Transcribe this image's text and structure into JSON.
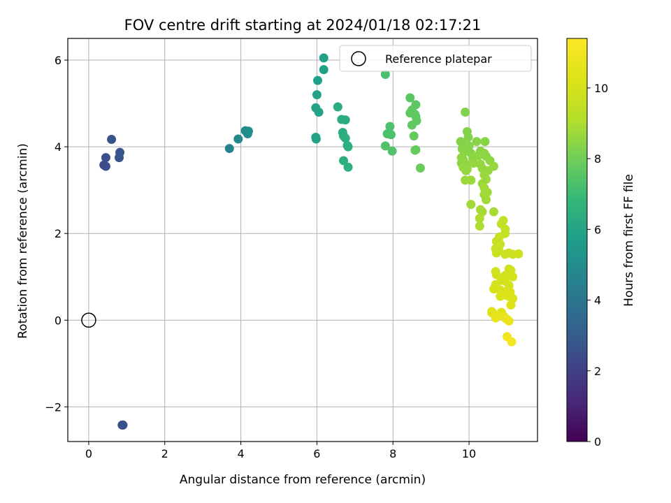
{
  "chart_data": {
    "type": "scatter",
    "title": "FOV centre drift starting at 2024/01/18 02:17:21",
    "xlabel": "Angular distance from reference (arcmin)",
    "ylabel": "Rotation from reference (arcmin)",
    "xlim": [
      -0.55,
      11.8
    ],
    "ylim": [
      -2.8,
      6.5
    ],
    "xticks": [
      0,
      2,
      4,
      6,
      8,
      10
    ],
    "yticks": [
      -2,
      0,
      2,
      4,
      6
    ],
    "grid": true,
    "legend": {
      "position": "top-right",
      "entries": [
        "Reference platepar"
      ]
    },
    "reference_point": {
      "x": 0,
      "y": 0,
      "label": "Reference platepar"
    },
    "colorbar": {
      "label": "Hours from first FF file",
      "colormap": "viridis",
      "range": [
        0,
        11.4
      ],
      "ticks": [
        0,
        2,
        4,
        6,
        8,
        10
      ]
    },
    "points": [
      {
        "x": 0.88,
        "y": -2.42,
        "c": 2.5
      },
      {
        "x": 0.9,
        "y": -2.42,
        "c": 2.5
      },
      {
        "x": 0.4,
        "y": 3.58,
        "c": 2.4
      },
      {
        "x": 0.45,
        "y": 3.55,
        "c": 2.4
      },
      {
        "x": 0.45,
        "y": 3.75,
        "c": 2.5
      },
      {
        "x": 0.6,
        "y": 4.17,
        "c": 2.6
      },
      {
        "x": 0.8,
        "y": 3.75,
        "c": 2.7
      },
      {
        "x": 0.82,
        "y": 3.87,
        "c": 2.7
      },
      {
        "x": 3.7,
        "y": 3.96,
        "c": 4.6
      },
      {
        "x": 3.93,
        "y": 4.18,
        "c": 4.8
      },
      {
        "x": 4.12,
        "y": 4.37,
        "c": 4.9
      },
      {
        "x": 4.18,
        "y": 4.3,
        "c": 4.9
      },
      {
        "x": 4.2,
        "y": 4.36,
        "c": 5.0
      },
      {
        "x": 6.18,
        "y": 6.05,
        "c": 5.8
      },
      {
        "x": 6.18,
        "y": 5.78,
        "c": 5.8
      },
      {
        "x": 6.02,
        "y": 5.53,
        "c": 5.8
      },
      {
        "x": 6.0,
        "y": 5.2,
        "c": 5.9
      },
      {
        "x": 5.97,
        "y": 4.9,
        "c": 5.9
      },
      {
        "x": 6.05,
        "y": 4.8,
        "c": 5.9
      },
      {
        "x": 5.97,
        "y": 4.22,
        "c": 5.9
      },
      {
        "x": 5.98,
        "y": 4.18,
        "c": 5.9
      },
      {
        "x": 6.55,
        "y": 4.92,
        "c": 6.3
      },
      {
        "x": 6.65,
        "y": 4.63,
        "c": 6.4
      },
      {
        "x": 6.75,
        "y": 4.62,
        "c": 6.4
      },
      {
        "x": 6.68,
        "y": 4.33,
        "c": 6.4
      },
      {
        "x": 6.7,
        "y": 4.25,
        "c": 6.4
      },
      {
        "x": 6.75,
        "y": 4.2,
        "c": 6.5
      },
      {
        "x": 6.8,
        "y": 4.03,
        "c": 6.5
      },
      {
        "x": 6.82,
        "y": 4.0,
        "c": 6.5
      },
      {
        "x": 6.7,
        "y": 3.68,
        "c": 6.5
      },
      {
        "x": 6.82,
        "y": 3.53,
        "c": 6.5
      },
      {
        "x": 7.8,
        "y": 5.67,
        "c": 7.3
      },
      {
        "x": 7.92,
        "y": 4.47,
        "c": 7.3
      },
      {
        "x": 7.85,
        "y": 4.3,
        "c": 7.3
      },
      {
        "x": 7.95,
        "y": 4.28,
        "c": 7.3
      },
      {
        "x": 7.8,
        "y": 4.02,
        "c": 7.4
      },
      {
        "x": 7.98,
        "y": 3.9,
        "c": 7.4
      },
      {
        "x": 8.45,
        "y": 5.13,
        "c": 7.6
      },
      {
        "x": 8.6,
        "y": 4.97,
        "c": 7.6
      },
      {
        "x": 8.5,
        "y": 4.85,
        "c": 7.7
      },
      {
        "x": 8.45,
        "y": 4.78,
        "c": 7.7
      },
      {
        "x": 8.58,
        "y": 4.75,
        "c": 7.7
      },
      {
        "x": 8.6,
        "y": 4.7,
        "c": 7.7
      },
      {
        "x": 8.62,
        "y": 4.6,
        "c": 7.7
      },
      {
        "x": 8.5,
        "y": 4.5,
        "c": 7.7
      },
      {
        "x": 8.55,
        "y": 4.25,
        "c": 7.8
      },
      {
        "x": 8.58,
        "y": 3.92,
        "c": 7.8
      },
      {
        "x": 8.6,
        "y": 3.93,
        "c": 7.8
      },
      {
        "x": 8.72,
        "y": 3.51,
        "c": 7.9
      },
      {
        "x": 9.9,
        "y": 4.8,
        "c": 8.3
      },
      {
        "x": 9.95,
        "y": 4.35,
        "c": 8.3
      },
      {
        "x": 9.98,
        "y": 4.22,
        "c": 8.3
      },
      {
        "x": 9.78,
        "y": 4.12,
        "c": 8.3
      },
      {
        "x": 9.85,
        "y": 4.05,
        "c": 8.3
      },
      {
        "x": 10.0,
        "y": 4.02,
        "c": 8.4
      },
      {
        "x": 10.2,
        "y": 4.12,
        "c": 8.4
      },
      {
        "x": 10.42,
        "y": 4.12,
        "c": 8.4
      },
      {
        "x": 9.82,
        "y": 3.95,
        "c": 8.4
      },
      {
        "x": 9.88,
        "y": 3.88,
        "c": 8.4
      },
      {
        "x": 10.05,
        "y": 3.85,
        "c": 8.4
      },
      {
        "x": 10.3,
        "y": 3.9,
        "c": 8.4
      },
      {
        "x": 10.4,
        "y": 3.85,
        "c": 8.5
      },
      {
        "x": 9.8,
        "y": 3.75,
        "c": 8.5
      },
      {
        "x": 9.85,
        "y": 3.7,
        "c": 8.5
      },
      {
        "x": 10.1,
        "y": 3.72,
        "c": 8.5
      },
      {
        "x": 10.25,
        "y": 3.8,
        "c": 8.5
      },
      {
        "x": 10.45,
        "y": 3.78,
        "c": 8.5
      },
      {
        "x": 10.55,
        "y": 3.68,
        "c": 8.5
      },
      {
        "x": 9.8,
        "y": 3.62,
        "c": 8.5
      },
      {
        "x": 9.9,
        "y": 3.6,
        "c": 8.5
      },
      {
        "x": 10.12,
        "y": 3.62,
        "c": 8.6
      },
      {
        "x": 10.3,
        "y": 3.6,
        "c": 8.6
      },
      {
        "x": 10.65,
        "y": 3.55,
        "c": 8.6
      },
      {
        "x": 9.85,
        "y": 3.52,
        "c": 8.6
      },
      {
        "x": 9.95,
        "y": 3.48,
        "c": 8.6
      },
      {
        "x": 10.35,
        "y": 3.5,
        "c": 8.6
      },
      {
        "x": 10.5,
        "y": 3.45,
        "c": 8.6
      },
      {
        "x": 9.92,
        "y": 3.45,
        "c": 8.6
      },
      {
        "x": 10.4,
        "y": 3.35,
        "c": 8.7
      },
      {
        "x": 10.45,
        "y": 3.25,
        "c": 8.7
      },
      {
        "x": 9.9,
        "y": 3.23,
        "c": 8.7
      },
      {
        "x": 10.05,
        "y": 3.23,
        "c": 8.7
      },
      {
        "x": 10.35,
        "y": 3.15,
        "c": 8.7
      },
      {
        "x": 10.4,
        "y": 3.05,
        "c": 8.8
      },
      {
        "x": 10.48,
        "y": 2.95,
        "c": 8.8
      },
      {
        "x": 10.4,
        "y": 2.9,
        "c": 8.8
      },
      {
        "x": 10.45,
        "y": 2.78,
        "c": 8.8
      },
      {
        "x": 10.05,
        "y": 2.67,
        "c": 8.8
      },
      {
        "x": 10.3,
        "y": 2.55,
        "c": 8.9
      },
      {
        "x": 10.35,
        "y": 2.5,
        "c": 8.9
      },
      {
        "x": 10.65,
        "y": 2.5,
        "c": 8.9
      },
      {
        "x": 10.28,
        "y": 2.35,
        "c": 9.0
      },
      {
        "x": 10.28,
        "y": 2.17,
        "c": 9.0
      },
      {
        "x": 10.9,
        "y": 2.3,
        "c": 9.5
      },
      {
        "x": 10.85,
        "y": 2.22,
        "c": 9.5
      },
      {
        "x": 10.95,
        "y": 2.1,
        "c": 9.5
      },
      {
        "x": 10.95,
        "y": 2.0,
        "c": 9.6
      },
      {
        "x": 10.8,
        "y": 1.92,
        "c": 9.6
      },
      {
        "x": 10.72,
        "y": 1.82,
        "c": 9.6
      },
      {
        "x": 10.82,
        "y": 1.75,
        "c": 9.6
      },
      {
        "x": 10.7,
        "y": 1.65,
        "c": 9.6
      },
      {
        "x": 10.78,
        "y": 1.62,
        "c": 9.7
      },
      {
        "x": 10.72,
        "y": 1.55,
        "c": 9.7
      },
      {
        "x": 10.95,
        "y": 1.52,
        "c": 9.7
      },
      {
        "x": 11.05,
        "y": 1.55,
        "c": 9.7
      },
      {
        "x": 11.15,
        "y": 1.52,
        "c": 9.8
      },
      {
        "x": 11.3,
        "y": 1.53,
        "c": 9.8
      },
      {
        "x": 11.05,
        "y": 1.18,
        "c": 9.9
      },
      {
        "x": 11.1,
        "y": 1.15,
        "c": 9.9
      },
      {
        "x": 10.7,
        "y": 1.12,
        "c": 9.9
      },
      {
        "x": 10.72,
        "y": 1.05,
        "c": 9.9
      },
      {
        "x": 10.95,
        "y": 1.03,
        "c": 9.9
      },
      {
        "x": 11.15,
        "y": 1.0,
        "c": 10.0
      },
      {
        "x": 10.85,
        "y": 0.92,
        "c": 10.0
      },
      {
        "x": 10.95,
        "y": 0.9,
        "c": 10.0
      },
      {
        "x": 10.7,
        "y": 0.82,
        "c": 10.0
      },
      {
        "x": 11.05,
        "y": 0.8,
        "c": 10.0
      },
      {
        "x": 10.65,
        "y": 0.72,
        "c": 10.1
      },
      {
        "x": 10.82,
        "y": 0.7,
        "c": 10.1
      },
      {
        "x": 10.9,
        "y": 0.65,
        "c": 10.1
      },
      {
        "x": 11.08,
        "y": 0.65,
        "c": 10.1
      },
      {
        "x": 10.95,
        "y": 0.58,
        "c": 10.2
      },
      {
        "x": 10.82,
        "y": 0.55,
        "c": 10.2
      },
      {
        "x": 11.05,
        "y": 0.55,
        "c": 10.2
      },
      {
        "x": 11.15,
        "y": 0.5,
        "c": 10.2
      },
      {
        "x": 11.1,
        "y": 0.35,
        "c": 10.3
      },
      {
        "x": 10.6,
        "y": 0.2,
        "c": 10.4
      },
      {
        "x": 10.6,
        "y": 0.17,
        "c": 10.4
      },
      {
        "x": 10.85,
        "y": 0.18,
        "c": 10.4
      },
      {
        "x": 10.75,
        "y": 0.12,
        "c": 10.5
      },
      {
        "x": 10.9,
        "y": 0.1,
        "c": 10.5
      },
      {
        "x": 10.7,
        "y": 0.05,
        "c": 10.6
      },
      {
        "x": 10.95,
        "y": 0.05,
        "c": 10.6
      },
      {
        "x": 11.0,
        "y": 0.02,
        "c": 10.7
      },
      {
        "x": 11.05,
        "y": -0.02,
        "c": 10.8
      },
      {
        "x": 11.0,
        "y": -0.38,
        "c": 11.0
      },
      {
        "x": 11.12,
        "y": -0.5,
        "c": 11.2
      }
    ]
  }
}
